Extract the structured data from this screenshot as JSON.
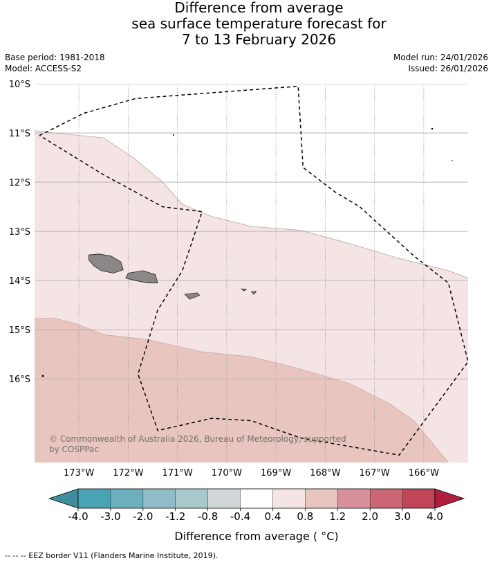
{
  "header": {
    "title_line1": "Difference from average",
    "title_line2": "sea surface temperature forecast for",
    "title_line3": "7 to 13 February 2026",
    "base_period": "Base period: 1981-2018",
    "model": "Model: ACCESS-S2",
    "model_run": "Model run: 24/01/2026",
    "issued": "Issued: 26/01/2026"
  },
  "map": {
    "copyright_line1": "© Commonwealth of Australia 2026, Bureau of Meteorology, supported",
    "copyright_line2": "by COSPPac",
    "land_color": "#8c8686",
    "eez_line": "dashed black"
  },
  "colorbar": {
    "tick_labels": [
      "-4.0",
      "-3.0",
      "-2.0",
      "-1.2",
      "-0.8",
      "-0.4",
      "0.4",
      "0.8",
      "1.2",
      "2.0",
      "3.0",
      "4.0"
    ],
    "colors": [
      "#3f8c9c",
      "#49a3b5",
      "#6cb0c0",
      "#8fbcc6",
      "#a8c8cc",
      "#d1d7d8",
      "#ffffff",
      "#f4e5e4",
      "#e9c5c0",
      "#d8919a",
      "#cb6675",
      "#c04556",
      "#b01f3f"
    ],
    "label": "Difference from average ( °C)"
  },
  "footnote": "--  --  -- EEZ border V11 (Flanders Marine Institute, 2019).",
  "chart_data": {
    "type": "heatmap",
    "title": "Difference from average sea surface temperature forecast for 7 to 13 February 2026",
    "x_axis": {
      "label": "",
      "range": [
        -173.9,
        -165.1
      ],
      "ticks": [
        "173°W",
        "172°W",
        "171°W",
        "170°W",
        "169°W",
        "168°W",
        "167°W",
        "166°W"
      ],
      "tick_values": [
        -173,
        -172,
        -171,
        -170,
        -169,
        -168,
        -167,
        -166
      ]
    },
    "y_axis": {
      "label": "",
      "range": [
        -17.7,
        -10.0
      ],
      "ticks": [
        "10°S",
        "11°S",
        "12°S",
        "13°S",
        "14°S",
        "15°S",
        "16°S"
      ],
      "tick_values": [
        -10,
        -11,
        -12,
        -13,
        -14,
        -15,
        -16
      ]
    },
    "grid": "dotted vertical (longitude) and solid horizontal (latitude)",
    "value_units": "°C",
    "regions": [
      {
        "name": "",
        "range_c": [
          -0.4,
          0.4
        ],
        "color": "#ffffff",
        "area": "north-east"
      },
      {
        "name": "",
        "range_c": [
          0.4,
          0.8
        ],
        "color": "#f4e5e4",
        "area": "central band"
      },
      {
        "name": "",
        "range_c": [
          0.8,
          1.2
        ],
        "color": "#e9c5c0",
        "area": "south-west"
      }
    ],
    "boundary_01": [
      [
        -174,
        -10.94
      ],
      [
        -173.5,
        -11.0
      ],
      [
        -173.0,
        -11.05
      ],
      [
        -172.5,
        -11.1
      ],
      [
        -171.9,
        -11.5
      ],
      [
        -171.3,
        -12.0
      ],
      [
        -170.9,
        -12.45
      ],
      [
        -170.3,
        -12.7
      ],
      [
        -169.5,
        -12.9
      ],
      [
        -168.5,
        -12.98
      ],
      [
        -167.5,
        -13.25
      ],
      [
        -166.5,
        -13.55
      ],
      [
        -165.5,
        -13.8
      ],
      [
        -165.1,
        -13.95
      ]
    ],
    "boundary_02": [
      [
        -174,
        -14.78
      ],
      [
        -173.5,
        -14.76
      ],
      [
        -173.0,
        -14.9
      ],
      [
        -172.5,
        -15.1
      ],
      [
        -171.6,
        -15.2
      ],
      [
        -170.5,
        -15.45
      ],
      [
        -169.5,
        -15.55
      ],
      [
        -168.5,
        -15.8
      ],
      [
        -167.5,
        -16.1
      ],
      [
        -166.7,
        -16.5
      ],
      [
        -166.2,
        -16.85
      ],
      [
        -165.5,
        -17.7
      ]
    ],
    "eez_border": [
      [
        -173.8,
        -11.05
      ],
      [
        -172.9,
        -10.6
      ],
      [
        -171.85,
        -10.3
      ],
      [
        -168.55,
        -10.05
      ],
      [
        -168.45,
        -11.7
      ],
      [
        -167.8,
        -12.2
      ],
      [
        -167.3,
        -12.5
      ],
      [
        -166.2,
        -13.5
      ],
      [
        -165.5,
        -14.05
      ],
      [
        -165.1,
        -15.65
      ],
      [
        -166.5,
        -17.55
      ],
      [
        -168.5,
        -17.2
      ],
      [
        -169.5,
        -16.85
      ],
      [
        -170.3,
        -16.8
      ],
      [
        -171.4,
        -17.05
      ],
      [
        -171.8,
        -15.9
      ],
      [
        -171.4,
        -14.6
      ],
      [
        -170.9,
        -13.8
      ],
      [
        -170.5,
        -12.6
      ],
      [
        -171.3,
        -12.5
      ],
      [
        -172.5,
        -11.85
      ],
      [
        -173.8,
        -11.05
      ]
    ],
    "land": [
      {
        "name": "",
        "polygon": [
          [
            -172.8,
            -13.48
          ],
          [
            -172.6,
            -13.46
          ],
          [
            -172.35,
            -13.5
          ],
          [
            -172.15,
            -13.62
          ],
          [
            -172.1,
            -13.78
          ],
          [
            -172.3,
            -13.85
          ],
          [
            -172.55,
            -13.8
          ],
          [
            -172.7,
            -13.7
          ],
          [
            -172.8,
            -13.58
          ]
        ]
      },
      {
        "name": "",
        "polygon": [
          [
            -172.0,
            -13.85
          ],
          [
            -171.7,
            -13.8
          ],
          [
            -171.45,
            -13.88
          ],
          [
            -171.4,
            -14.05
          ],
          [
            -171.6,
            -14.05
          ],
          [
            -171.85,
            -14.0
          ],
          [
            -172.05,
            -13.95
          ]
        ]
      },
      {
        "name": "",
        "polygon": [
          [
            -170.85,
            -14.28
          ],
          [
            -170.6,
            -14.25
          ],
          [
            -170.55,
            -14.3
          ],
          [
            -170.75,
            -14.38
          ]
        ]
      },
      {
        "name": "",
        "polygon": [
          [
            -169.7,
            -14.17
          ],
          [
            -169.6,
            -14.18
          ],
          [
            -169.65,
            -14.21
          ]
        ]
      },
      {
        "name": "",
        "polygon": [
          [
            -169.5,
            -14.23
          ],
          [
            -169.4,
            -14.22
          ],
          [
            -169.45,
            -14.28
          ]
        ]
      }
    ]
  }
}
